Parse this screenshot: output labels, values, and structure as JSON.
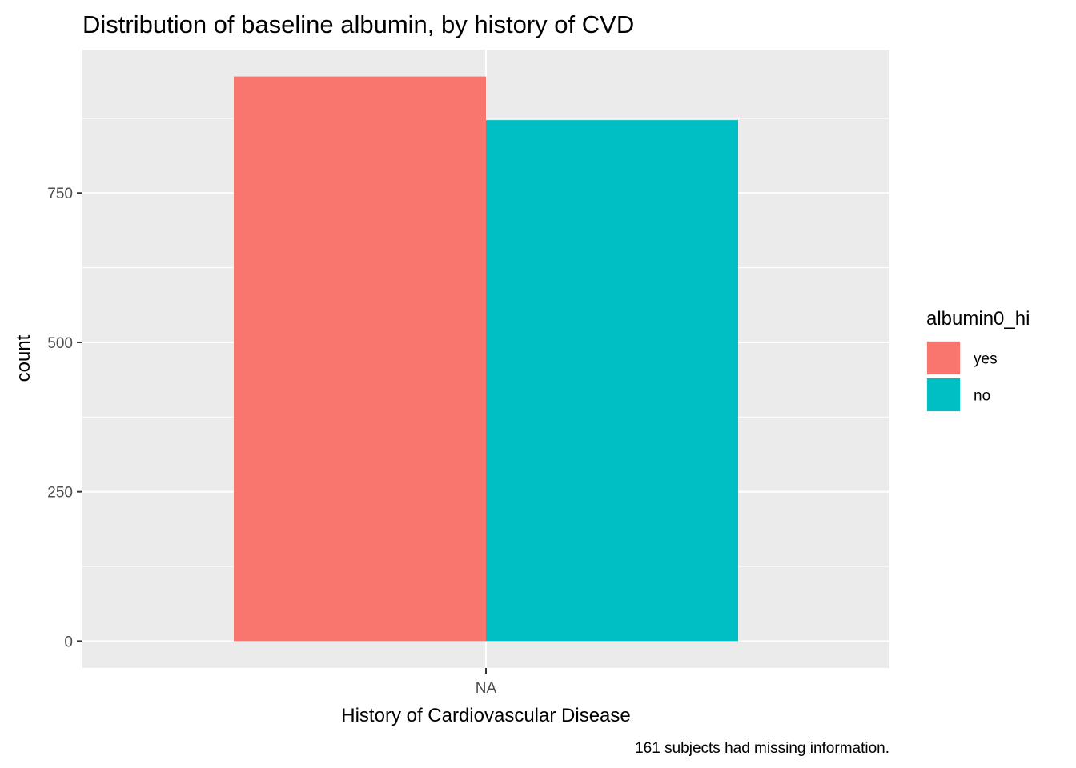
{
  "chart_data": {
    "type": "bar",
    "title": "Distribution of baseline albumin, by history of CVD",
    "xlabel": "History of Cardiovascular Disease",
    "ylabel": "count",
    "caption": "161 subjects had missing information.",
    "categories": [
      "NA"
    ],
    "series": [
      {
        "name": "yes",
        "color": "#F8766D",
        "values": [
          945
        ]
      },
      {
        "name": "no",
        "color": "#00BFC4",
        "values": [
          872
        ]
      }
    ],
    "yticks": [
      0,
      250,
      500,
      750
    ],
    "ylim": [
      -45,
      990
    ],
    "legend": {
      "title": "albumin0_hi",
      "position": "right"
    },
    "grid": true,
    "panel_color": "#EBEBEB",
    "grid_color": "#FFFFFF"
  }
}
